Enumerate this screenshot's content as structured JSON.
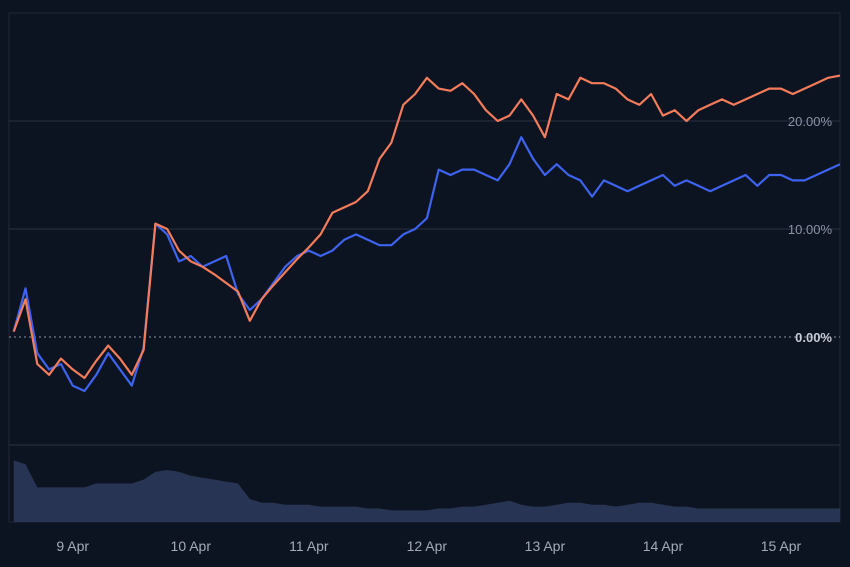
{
  "chart_data": {
    "type": "line",
    "title": "",
    "xlabel": "",
    "ylabel": "",
    "x_tick_labels": [
      "9 Apr",
      "10 Apr",
      "11 Apr",
      "12 Apr",
      "13 Apr",
      "14 Apr",
      "15 Apr"
    ],
    "y_tick_labels": [
      "0.00%",
      "10.00%",
      "20.00%"
    ],
    "y_ticks": [
      0,
      10,
      20
    ],
    "ylim": [
      -10,
      30
    ],
    "grid": true,
    "legend": "none",
    "colors": {
      "series_a": "#f47c5a",
      "series_b": "#3d63f0",
      "volume": "#2e3a5c",
      "background": "#0d1421"
    },
    "x": [
      8.5,
      8.6,
      8.7,
      8.8,
      8.9,
      9.0,
      9.1,
      9.2,
      9.3,
      9.4,
      9.5,
      9.6,
      9.7,
      9.8,
      9.9,
      10.0,
      10.1,
      10.2,
      10.3,
      10.4,
      10.5,
      10.6,
      10.7,
      10.8,
      10.9,
      11.0,
      11.1,
      11.2,
      11.3,
      11.4,
      11.5,
      11.6,
      11.7,
      11.8,
      11.9,
      12.0,
      12.1,
      12.2,
      12.3,
      12.4,
      12.5,
      12.6,
      12.7,
      12.8,
      12.9,
      13.0,
      13.1,
      13.2,
      13.3,
      13.4,
      13.5,
      13.6,
      13.7,
      13.8,
      13.9,
      14.0,
      14.1,
      14.2,
      14.3,
      14.4,
      14.5,
      14.6,
      14.7,
      14.8,
      14.9,
      15.0,
      15.1,
      15.2,
      15.3,
      15.4,
      15.5
    ],
    "series": [
      {
        "values": [
          0.5,
          3.5,
          -2.5,
          -3.5,
          -2.0,
          -3.0,
          -3.8,
          -2.2,
          -0.8,
          -2.0,
          -3.5,
          -1.2,
          10.5,
          10.0,
          8.0,
          7.0,
          6.5,
          5.8,
          5.0,
          4.2,
          1.5,
          3.5,
          4.8,
          6.0,
          7.2,
          8.3,
          9.5,
          11.5,
          12.0,
          12.5,
          13.5,
          16.5,
          18.0,
          21.5,
          22.5,
          24.0,
          23.0,
          22.8,
          23.5,
          22.5,
          21.0,
          20.0,
          20.5,
          22.0,
          20.5,
          18.5,
          22.5,
          22.0,
          24.0,
          23.5,
          23.5,
          23.0,
          22.0,
          21.5,
          22.5,
          20.5,
          21.0,
          20.0,
          21.0,
          21.5,
          22.0,
          21.5,
          22.0,
          22.5,
          23.0,
          23.0,
          22.5,
          23.0,
          23.5,
          24.0,
          24.2
        ]
      },
      {
        "values": [
          0.5,
          4.5,
          -1.5,
          -3.0,
          -2.5,
          -4.5,
          -5.0,
          -3.5,
          -1.5,
          -3.0,
          -4.5,
          -1.0,
          10.5,
          9.5,
          7.0,
          7.5,
          6.5,
          7.0,
          7.5,
          4.0,
          2.5,
          3.5,
          5.0,
          6.5,
          7.5,
          8.0,
          7.5,
          8.0,
          9.0,
          9.5,
          9.0,
          8.5,
          8.5,
          9.5,
          10.0,
          11.0,
          15.5,
          15.0,
          15.5,
          15.5,
          15.0,
          14.5,
          16.0,
          18.5,
          16.5,
          15.0,
          16.0,
          15.0,
          14.5,
          13.0,
          14.5,
          14.0,
          13.5,
          14.0,
          14.5,
          15.0,
          14.0,
          14.5,
          14.0,
          13.5,
          14.0,
          14.5,
          15.0,
          14.0,
          15.0,
          15.0,
          14.5,
          14.5,
          15.0,
          15.5,
          16.0
        ]
      }
    ],
    "volume": [
      16,
      15,
      9,
      9,
      9,
      9,
      9,
      10,
      10,
      10,
      10,
      11,
      13,
      13.5,
      13,
      12,
      11.5,
      11,
      10.5,
      10,
      6,
      5,
      5,
      4.5,
      4.5,
      4.5,
      4,
      4,
      4,
      4,
      3.5,
      3.5,
      3,
      3,
      3,
      3,
      3.5,
      3.5,
      4,
      4,
      4.5,
      5,
      5.5,
      4.5,
      4,
      4,
      4.5,
      5,
      5,
      4.5,
      4.5,
      4,
      4.5,
      5,
      5,
      4.5,
      4,
      4,
      3.5,
      3.5,
      3.5,
      3.5,
      3.5,
      3.5,
      3.5,
      3.5,
      3.5,
      3.5,
      3.5,
      3.5,
      3.5
    ]
  }
}
